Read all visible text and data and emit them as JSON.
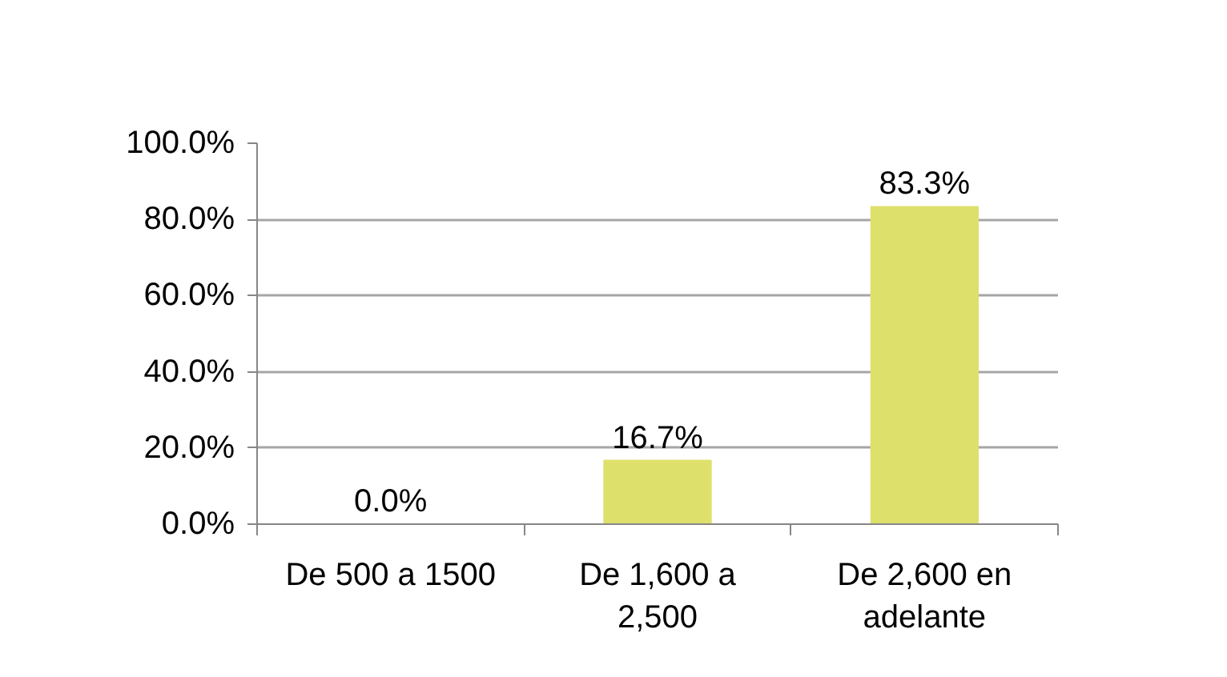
{
  "chart_data": {
    "type": "bar",
    "categories": [
      "De 500 a 1500",
      "De 1,600 a 2,500",
      "De 2,600 en adelante"
    ],
    "values": [
      0.0,
      16.7,
      83.3
    ],
    "value_labels": [
      "0.0%",
      "16.7%",
      "83.3%"
    ],
    "color": "#dee06c",
    "ylim": [
      0,
      100
    ],
    "yticks": [
      {
        "value": 0,
        "label": "0.0%"
      },
      {
        "value": 20,
        "label": "20.0%"
      },
      {
        "value": 40,
        "label": "40.0%"
      },
      {
        "value": 60,
        "label": "60.0%"
      },
      {
        "value": 80,
        "label": "80.0%"
      },
      {
        "value": 100,
        "label": "100.0%"
      }
    ],
    "grid": "y"
  }
}
